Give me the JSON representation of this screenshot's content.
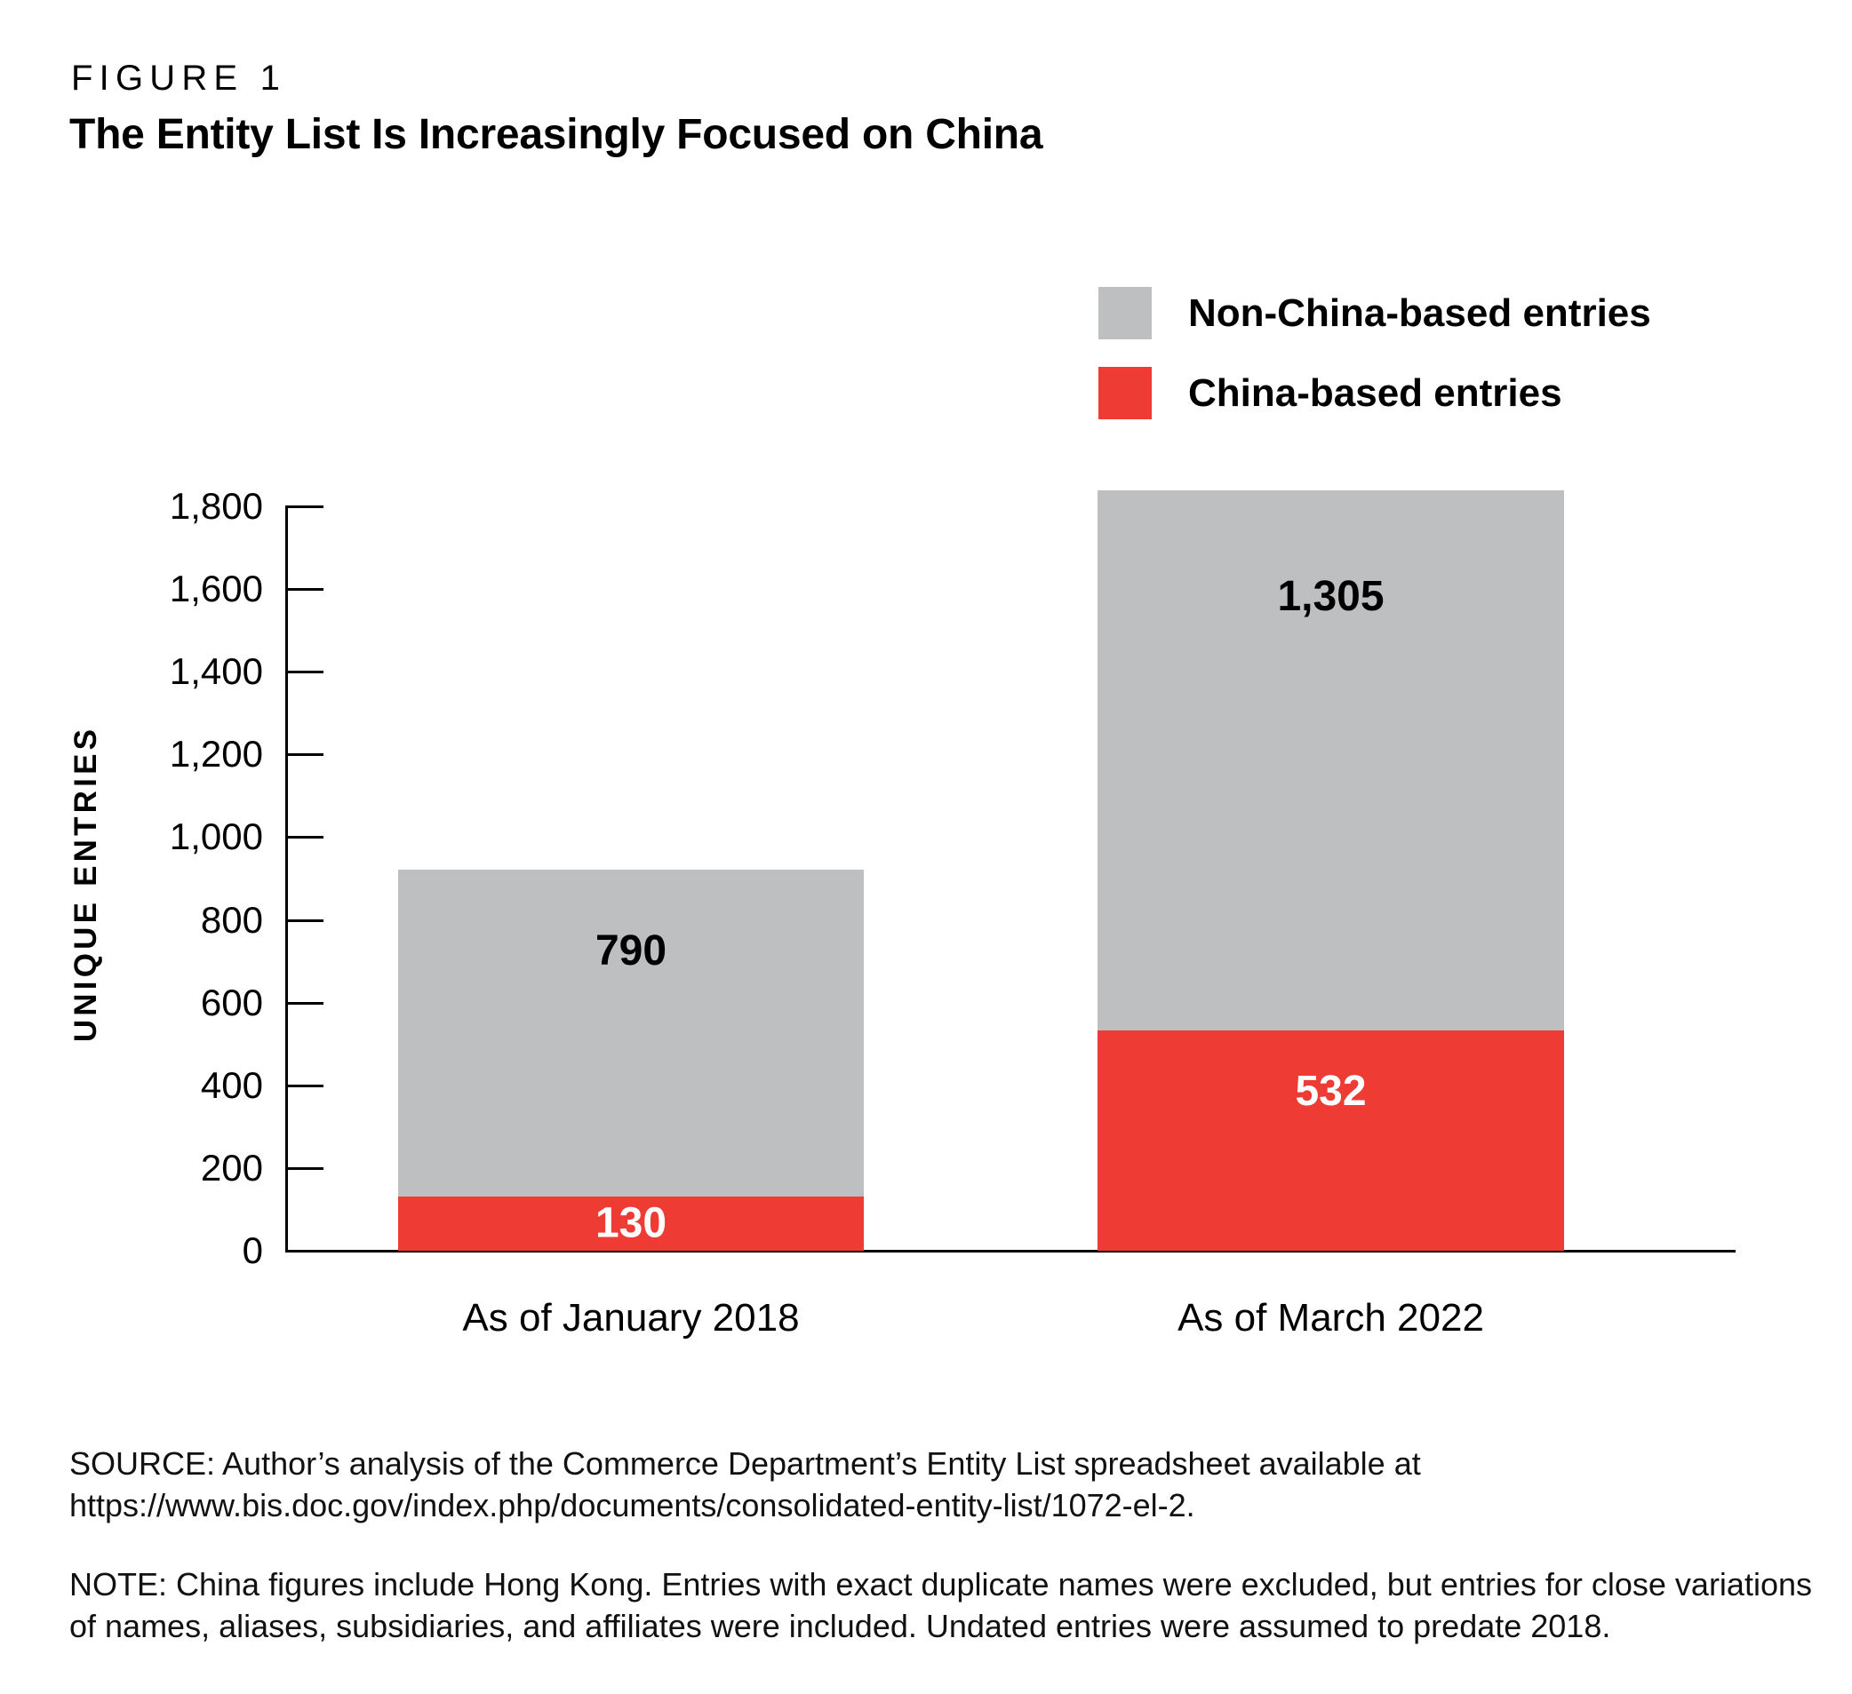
{
  "figure": {
    "label": "FIGURE 1",
    "title": "The Entity List Is Increasingly Focused on China"
  },
  "legend": [
    {
      "label": "Non-China-based entries",
      "color": "#bdbfc1"
    },
    {
      "label": "China-based entries",
      "color": "#ee3b33"
    }
  ],
  "chart_data": {
    "type": "bar",
    "stacked": true,
    "categories": [
      "As of January 2018",
      "As of March 2022"
    ],
    "series": [
      {
        "name": "China-based entries",
        "color": "#ee3b33",
        "values": [
          130,
          532
        ],
        "labels": [
          "130",
          "532"
        ]
      },
      {
        "name": "Non-China-based entries",
        "color": "#bdbfc1",
        "values": [
          790,
          1305
        ],
        "labels": [
          "790",
          "1,305"
        ]
      }
    ],
    "totals": [
      920,
      1837
    ],
    "ylabel": "UNIQUE ENTRIES",
    "xlabel": "",
    "ylim": [
      0,
      1800
    ],
    "y_ticks": [
      {
        "value": 0,
        "label": "0"
      },
      {
        "value": 200,
        "label": "200"
      },
      {
        "value": 400,
        "label": "400"
      },
      {
        "value": 600,
        "label": "600"
      },
      {
        "value": 800,
        "label": "800"
      },
      {
        "value": 1000,
        "label": "1,000"
      },
      {
        "value": 1200,
        "label": "1,200"
      },
      {
        "value": 1400,
        "label": "1,400"
      },
      {
        "value": 1600,
        "label": "1,600"
      },
      {
        "value": 1800,
        "label": "1,800"
      }
    ],
    "grid": false,
    "legend_position": "top-right"
  },
  "footer": {
    "source_line1": "SOURCE: Author’s analysis of the Commerce Department’s Entity List spreadsheet available at",
    "source_line2": "https://www.bis.doc.gov/index.php/documents/consolidated-entity-list/1072-el-2.",
    "note_line1": "NOTE: China figures include Hong Kong. Entries with exact duplicate names were excluded, but entries for close variations",
    "note_line2": "of names, aliases, subsidiaries, and affiliates were included. Undated entries were assumed to predate 2018."
  }
}
